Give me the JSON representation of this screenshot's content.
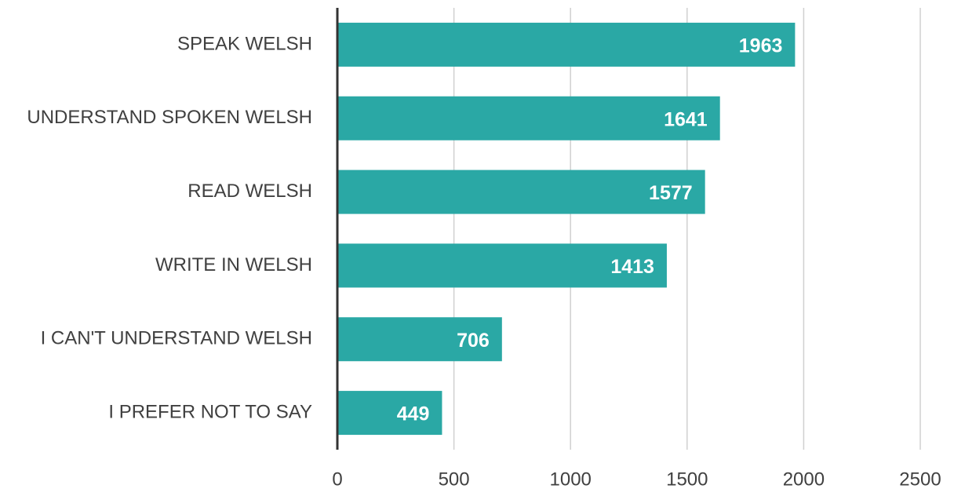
{
  "chart_data": {
    "type": "bar",
    "orientation": "horizontal",
    "categories": [
      "SPEAK WELSH",
      "UNDERSTAND SPOKEN WELSH",
      "READ WELSH",
      "WRITE IN WELSH",
      "I CAN'T UNDERSTAND WELSH",
      "I PREFER NOT TO SAY"
    ],
    "values": [
      1963,
      1641,
      1577,
      1413,
      706,
      449
    ],
    "color": "#2aa8a5",
    "xlim": [
      0,
      2500
    ],
    "xticks": [
      0,
      500,
      1000,
      1500,
      2000,
      2500
    ],
    "grid": true
  }
}
